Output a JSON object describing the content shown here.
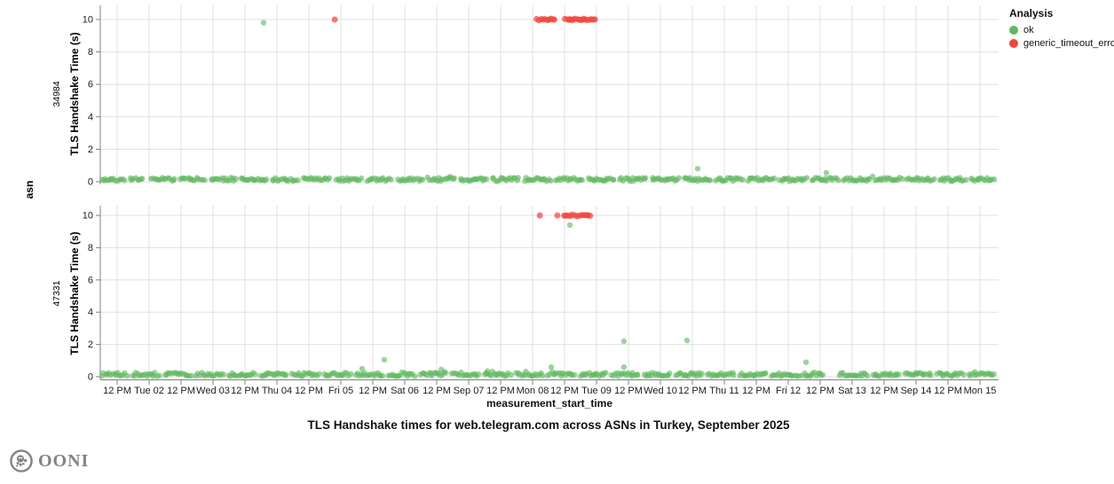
{
  "title": "TLS Handshake times for web.telegram.com across ASNs in Turkey, September 2025",
  "legend": {
    "title": "Analysis",
    "items": [
      {
        "label": "ok",
        "color": "#60b860"
      },
      {
        "label": "generic_timeout_error",
        "color": "#f2453d"
      }
    ]
  },
  "footer": {
    "brand": "OONI"
  },
  "chart_data": {
    "type": "scatter",
    "xlabel": "measurement_start_time",
    "ylabel": "TLS Handshake Time (s)",
    "facet_axis_label": "asn",
    "x_domain_hours_since_sep1": [
      5.7,
      343
    ],
    "x_tick_hours": [
      12,
      24,
      36,
      48,
      60,
      72,
      84,
      96,
      108,
      120,
      132,
      144,
      156,
      168,
      180,
      192,
      204,
      216,
      228,
      240,
      252,
      264,
      276,
      288,
      300,
      312,
      324,
      336
    ],
    "x_tick_labels": [
      "12 PM",
      "Tue 02",
      "12 PM",
      "Wed 03",
      "12 PM",
      "Thu 04",
      "12 PM",
      "Fri 05",
      "12 PM",
      "Sat 06",
      "12 PM",
      "Sep 07",
      "12 PM",
      "Mon 08",
      "12 PM",
      "Tue 09",
      "12 PM",
      "Wed 10",
      "12 PM",
      "Thu 11",
      "12 PM",
      "Fri 12",
      "12 PM",
      "Sat 13",
      "12 PM",
      "Sep 14",
      "12 PM",
      "Mon 15"
    ],
    "y_ticks": [
      0,
      2,
      4,
      6,
      8,
      10
    ],
    "y_domain": [
      0,
      10.8
    ],
    "point_colors": {
      "ok": "#60b860",
      "generic_timeout_error": "#f2453d"
    },
    "facets": [
      {
        "asn": "34984",
        "baseline_value_range": [
          0.03,
          0.25
        ],
        "baseline_segments_hours": [
          [
            6,
            15
          ],
          [
            16.5,
            22
          ],
          [
            24.5,
            34
          ],
          [
            35.5,
            45
          ],
          [
            47,
            57
          ],
          [
            58,
            68.5
          ],
          [
            70,
            80
          ],
          [
            81.5,
            92
          ],
          [
            94,
            104
          ],
          [
            105.5,
            115
          ],
          [
            117,
            127
          ],
          [
            128.5,
            139
          ],
          [
            140.5,
            151
          ],
          [
            152.5,
            163
          ],
          [
            164.5,
            175
          ],
          [
            176.5,
            187
          ],
          [
            188.5,
            199
          ],
          [
            200.5,
            211
          ],
          [
            212.5,
            223
          ],
          [
            224.5,
            235
          ],
          [
            236.5,
            247
          ],
          [
            248.5,
            259
          ],
          [
            260.5,
            271
          ],
          [
            272.5,
            283
          ],
          [
            284.5,
            295
          ],
          [
            296.5,
            307
          ],
          [
            308.5,
            319
          ],
          [
            320.5,
            331
          ],
          [
            332.5,
            341.5
          ]
        ],
        "ok_outliers": [
          [
            67,
            9.8
          ],
          [
            230,
            0.8
          ],
          [
            278.3,
            0.55
          ],
          [
            295.7,
            0.33
          ]
        ],
        "error_points": [
          [
            93.7,
            10.0
          ]
        ],
        "error_clusters_hours": [
          [
            169.7,
            176.3,
            10
          ],
          [
            180.3,
            191.3,
            18
          ]
        ]
      },
      {
        "asn": "47331",
        "baseline_value_range": [
          0.03,
          0.25
        ],
        "baseline_segments_hours": [
          [
            6,
            16
          ],
          [
            17.5,
            28
          ],
          [
            29.5,
            40
          ],
          [
            41.5,
            52
          ],
          [
            53.5,
            64
          ],
          [
            65.5,
            76
          ],
          [
            77.5,
            88
          ],
          [
            89.5,
            100
          ],
          [
            101.5,
            112
          ],
          [
            113.5,
            124
          ],
          [
            125.5,
            136
          ],
          [
            137.5,
            148
          ],
          [
            149.5,
            160
          ],
          [
            161.5,
            172
          ],
          [
            173.5,
            184
          ],
          [
            185.5,
            196
          ],
          [
            197.5,
            208
          ],
          [
            209.5,
            220
          ],
          [
            221.5,
            232
          ],
          [
            233.5,
            244
          ],
          [
            245.5,
            256
          ],
          [
            257.5,
            268
          ],
          [
            269,
            277.5
          ],
          [
            283,
            294
          ],
          [
            295.5,
            306
          ],
          [
            307.5,
            318
          ],
          [
            319.5,
            330
          ],
          [
            331.5,
            341.5
          ]
        ],
        "ok_outliers": [
          [
            104,
            0.5
          ],
          [
            112.3,
            1.05
          ],
          [
            133.7,
            0.45
          ],
          [
            151,
            0.35
          ],
          [
            175,
            0.6
          ],
          [
            182,
            9.4
          ],
          [
            202.3,
            2.2
          ],
          [
            202.3,
            0.6
          ],
          [
            226,
            2.25
          ],
          [
            270.7,
            0.9
          ]
        ],
        "error_points": [
          [
            170.7,
            10.0
          ],
          [
            177.3,
            10.0
          ]
        ],
        "error_clusters_hours": [
          [
            179.7,
            189.7,
            13
          ]
        ]
      }
    ]
  }
}
